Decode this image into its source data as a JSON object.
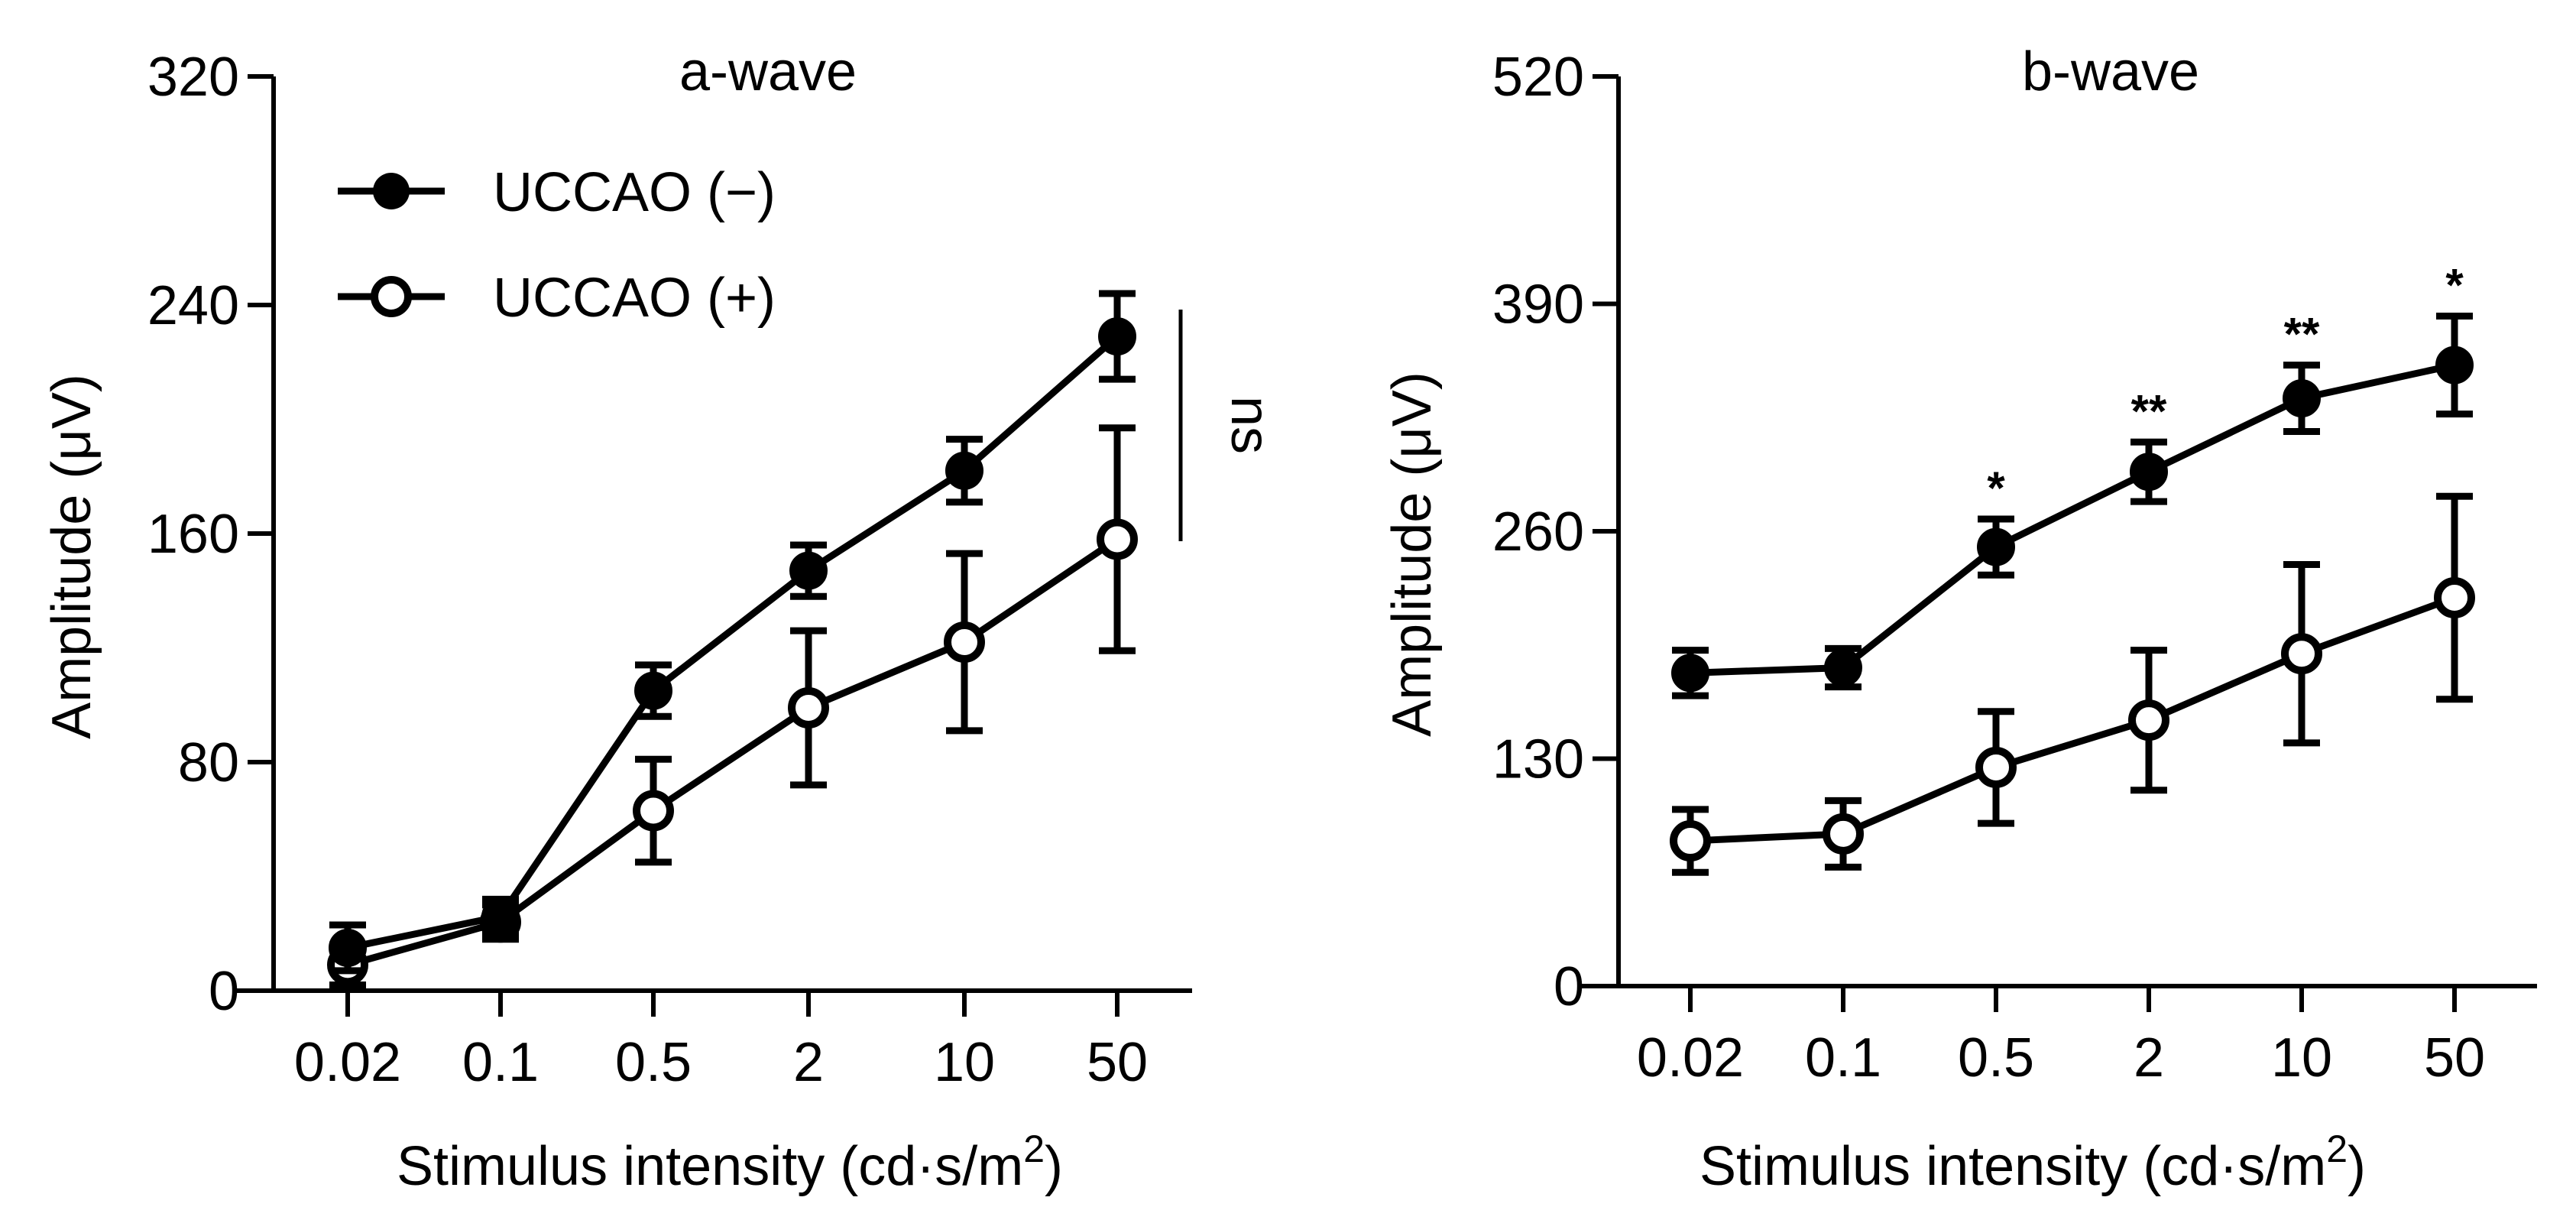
{
  "chart_data": [
    {
      "type": "line",
      "title": "a-wave",
      "xlabel": "Stimulus intensity (cd·s/m",
      "xlabel_sup": "2",
      "xlabel_end": ")",
      "ylabel": "Amplitude (μV)",
      "categories": [
        "0.02",
        "0.1",
        "0.5",
        "2",
        "10",
        "50"
      ],
      "ylim": [
        0,
        320
      ],
      "yticks": [
        "0",
        "80",
        "160",
        "240",
        "320"
      ],
      "series": [
        {
          "name": "UCCAO (−)",
          "marker": "filled",
          "values": [
            15,
            26,
            105,
            147,
            182,
            229
          ],
          "err": [
            8,
            6,
            9,
            9,
            11,
            15
          ]
        },
        {
          "name": "UCCAO (+)",
          "marker": "open",
          "values": [
            9,
            24,
            63,
            99,
            122,
            158
          ],
          "err": [
            7,
            6,
            18,
            27,
            31,
            39
          ]
        }
      ],
      "annotations": [
        {
          "text": "ns",
          "rotated": true
        }
      ]
    },
    {
      "type": "line",
      "title": "b-wave",
      "xlabel": "Stimulus intensity (cd·s/m",
      "xlabel_sup": "2",
      "xlabel_end": ")",
      "ylabel": "Amplitude (μV)",
      "categories": [
        "0.02",
        "0.1",
        "0.5",
        "2",
        "10",
        "50"
      ],
      "ylim": [
        0,
        520
      ],
      "yticks": [
        "0",
        "130",
        "260",
        "390",
        "520"
      ],
      "series": [
        {
          "name": "UCCAO (−)",
          "marker": "filled",
          "values": [
            179,
            182,
            251,
            294,
            336,
            355
          ],
          "err": [
            13,
            11,
            16,
            17,
            19,
            28
          ]
        },
        {
          "name": "UCCAO (+)",
          "marker": "open",
          "values": [
            83,
            87,
            125,
            152,
            190,
            222
          ],
          "err": [
            18,
            19,
            32,
            40,
            51,
            58
          ]
        }
      ],
      "significance": [
        "",
        "",
        "*",
        "**",
        "**",
        "*"
      ]
    }
  ],
  "legend": [
    {
      "label": "UCCAO (−)",
      "marker": "filled"
    },
    {
      "label": "UCCAO (+)",
      "marker": "open"
    }
  ]
}
